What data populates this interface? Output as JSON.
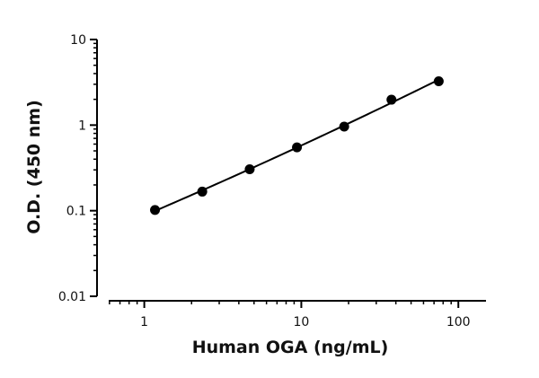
{
  "chart_data": {
    "type": "scatter",
    "title": "",
    "xlabel": "Human OGA (ng/mL)",
    "ylabel": "O.D. (450 nm)",
    "xscale": "log",
    "yscale": "log",
    "xlim": [
      0.5,
      150
    ],
    "ylim": [
      0.01,
      10
    ],
    "grid": false,
    "x_ticks": [
      {
        "value": 1,
        "label": "1"
      },
      {
        "value": 10,
        "label": "10"
      },
      {
        "value": 100,
        "label": "100"
      }
    ],
    "y_ticks": [
      {
        "value": 0.01,
        "label": "0.01"
      },
      {
        "value": 0.1,
        "label": "0.1"
      },
      {
        "value": 1,
        "label": "1"
      },
      {
        "value": 10,
        "label": "10"
      }
    ],
    "series": [
      {
        "x": [
          1.17,
          2.34,
          4.69,
          9.38,
          18.75,
          37.5,
          75
        ],
        "y": [
          0.102,
          0.167,
          0.305,
          0.55,
          0.96,
          1.98,
          3.25
        ],
        "color": "#000000",
        "fit_line": true
      }
    ]
  }
}
